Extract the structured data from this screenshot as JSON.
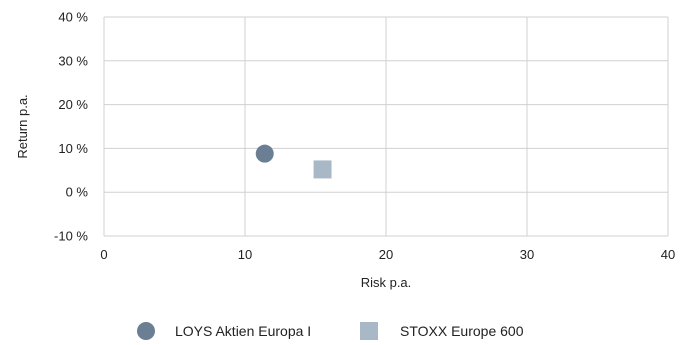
{
  "chart_data": {
    "type": "scatter",
    "title": "",
    "xlabel": "Risk p.a.",
    "ylabel": "Return p.a.",
    "xlim": [
      0,
      40
    ],
    "ylim": [
      -10,
      40
    ],
    "x_ticks": [
      0,
      10,
      20,
      30,
      40
    ],
    "x_tick_labels": [
      "0",
      "10",
      "20",
      "30",
      "40"
    ],
    "y_ticks": [
      -10,
      0,
      10,
      20,
      30,
      40
    ],
    "y_tick_labels": [
      "-10 %",
      "0 %",
      "10 %",
      "20 %",
      "30 %",
      "40 %"
    ],
    "grid": true,
    "legend_position": "bottom-center",
    "series": [
      {
        "name": "LOYS Aktien Europa I",
        "marker": "circle",
        "color": "#6a7f94",
        "points": [
          {
            "x": 11.4,
            "y": 8.8
          }
        ]
      },
      {
        "name": "STOXX Europe 600",
        "marker": "square",
        "color": "#a9b8c6",
        "points": [
          {
            "x": 15.5,
            "y": 5.2
          }
        ]
      }
    ]
  }
}
